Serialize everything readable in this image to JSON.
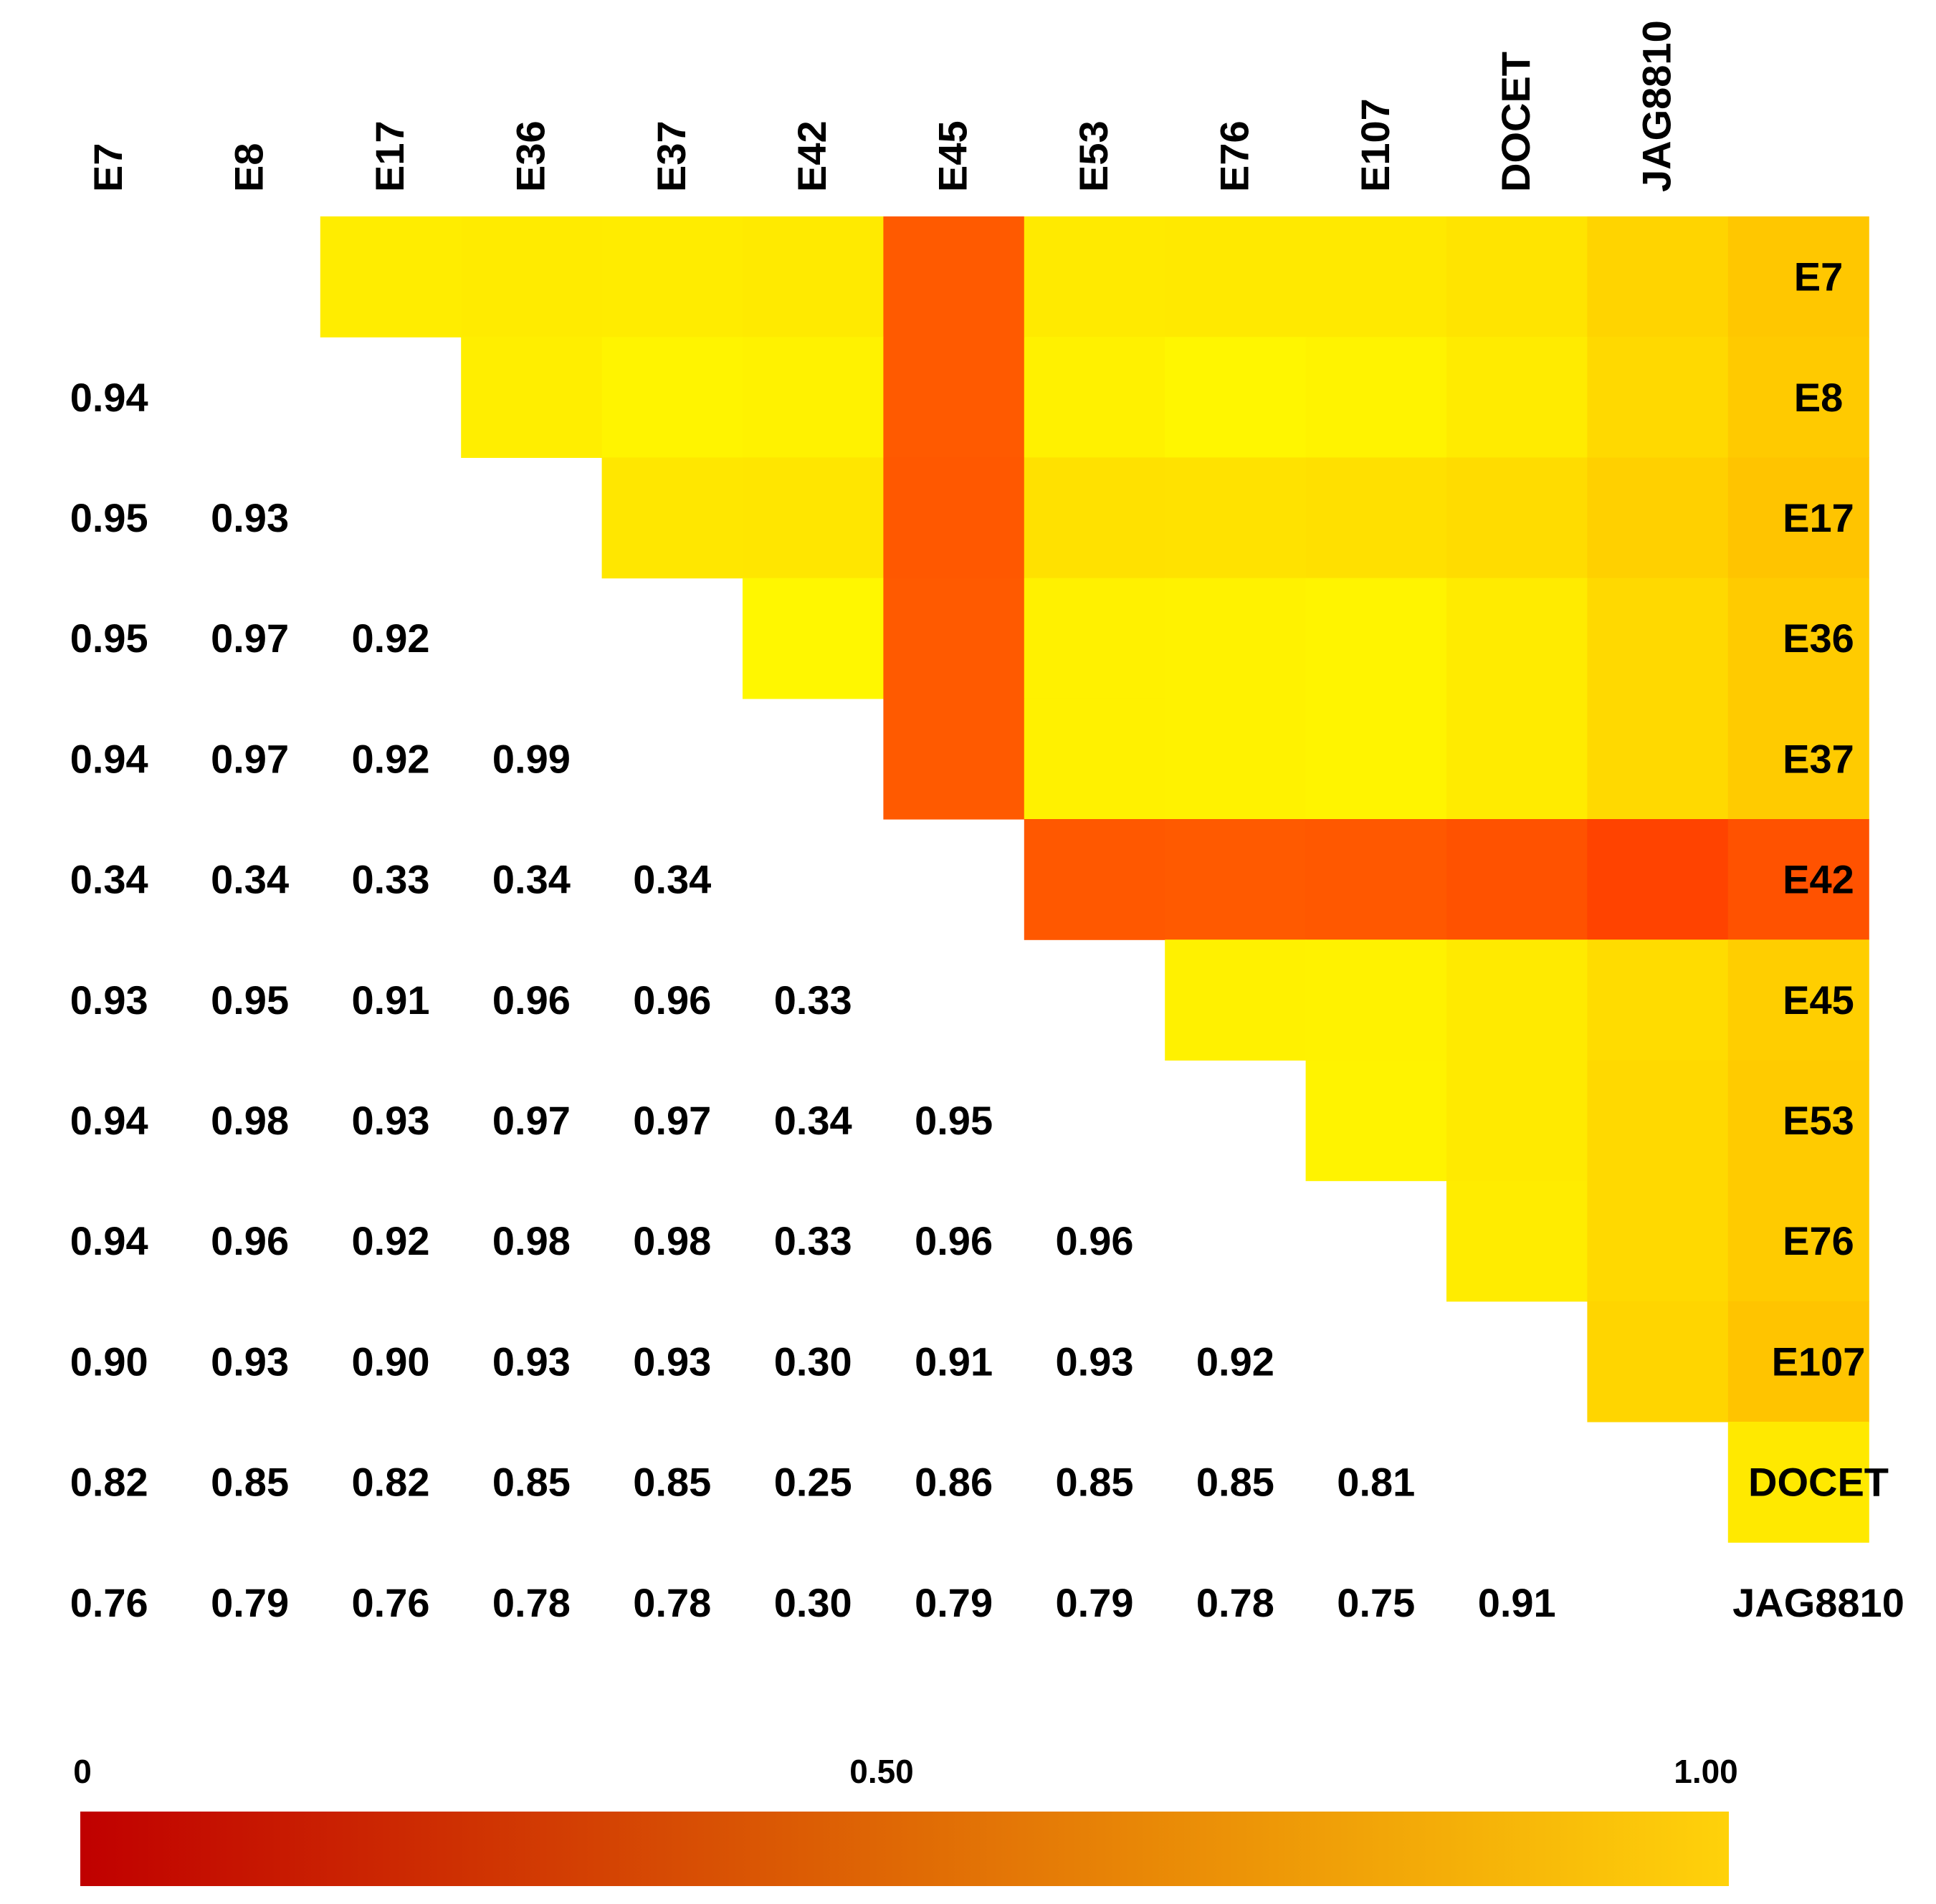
{
  "chart_data": {
    "type": "heatmap",
    "title": "",
    "labels": [
      "E7",
      "E8",
      "E17",
      "E36",
      "E37",
      "E42",
      "E45",
      "E53",
      "E76",
      "E107",
      "DOCET",
      "JAG8810"
    ],
    "lower_triangle_text": [
      [],
      [
        "0.94"
      ],
      [
        "0.95",
        "0.93"
      ],
      [
        "0.95",
        "0.97",
        "0.92"
      ],
      [
        "0.94",
        "0.97",
        "0.92",
        "0.99"
      ],
      [
        "0.34",
        "0.34",
        "0.33",
        "0.34",
        "0.34"
      ],
      [
        "0.93",
        "0.95",
        "0.91",
        "0.96",
        "0.96",
        "0.33"
      ],
      [
        "0.94",
        "0.98",
        "0.93",
        "0.97",
        "0.97",
        "0.34",
        "0.95"
      ],
      [
        "0.94",
        "0.96",
        "0.92",
        "0.98",
        "0.98",
        "0.33",
        "0.96",
        "0.96"
      ],
      [
        "0.90",
        "0.93",
        "0.90",
        "0.93",
        "0.93",
        "0.30",
        "0.91",
        "0.93",
        "0.92"
      ],
      [
        "0.82",
        "0.85",
        "0.82",
        "0.85",
        "0.85",
        "0.25",
        "0.86",
        "0.85",
        "0.85",
        "0.81"
      ],
      [
        "0.76",
        "0.79",
        "0.76",
        "0.78",
        "0.78",
        "0.30",
        "0.79",
        "0.79",
        "0.78",
        "0.75",
        "0.91"
      ]
    ],
    "upper_triangle_colors": [
      [
        "#FFED00",
        "#FFEB00",
        "#FFEC00",
        "#FFEA00",
        "#FF5A00",
        "#FFEA00",
        "#FFE900",
        "#FFE900",
        "#FFE400",
        "#FFD400",
        "#FFC700"
      ],
      [
        "#FFEE00",
        "#FFF400",
        "#FFF200",
        "#FF5A00",
        "#FFF100",
        "#FFF600",
        "#FFF300",
        "#FFEB00",
        "#FFD900",
        "#FFCA00"
      ],
      [
        "#FFE700",
        "#FFE600",
        "#FF5800",
        "#FFE100",
        "#FFE200",
        "#FFE000",
        "#FFDC00",
        "#FFD000",
        "#FFC400"
      ],
      [
        "#FFF700",
        "#FF5A00",
        "#FFF100",
        "#FFF200",
        "#FFF400",
        "#FFEB00",
        "#FFD900",
        "#FFCB00"
      ],
      [
        "#FF5A00",
        "#FFF100",
        "#FFF200",
        "#FFF400",
        "#FFEB00",
        "#FFD900",
        "#FFCB00"
      ],
      [
        "#FF5800",
        "#FF5A00",
        "#FF5800",
        "#FF5200",
        "#FF4300",
        "#FF5200"
      ],
      [
        "#FFF100",
        "#FFF200",
        "#FFEA00",
        "#FFDC00",
        "#FFCE00"
      ],
      [
        "#FFF300",
        "#FFEA00",
        "#FFD900",
        "#FFCB00"
      ],
      [
        "#FFEC00",
        "#FFD900",
        "#FFCB00"
      ],
      [
        "#FFD500",
        "#FFC400"
      ],
      [
        "#FFE900"
      ]
    ],
    "colorbar": {
      "min": 0,
      "max": 1.0,
      "ticks": [
        "0",
        "0.50",
        "1.00"
      ],
      "colors": [
        "#C00000",
        "#FFD20A"
      ]
    }
  }
}
